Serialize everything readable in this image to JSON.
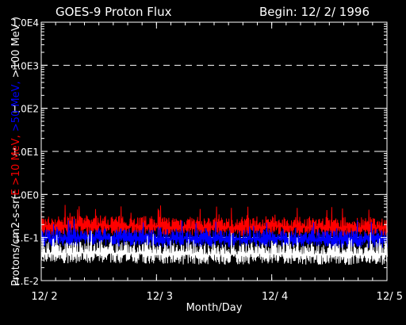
{
  "chart_data": {
    "type": "line",
    "title": "GOES-9 Proton Flux",
    "subtitle": "Begin: 12/ 2/ 1996",
    "xlabel": "Month/Day",
    "ylabel_parts": [
      {
        "text": "Protons/cm2-s-sr(",
        "color": "#ffffff"
      },
      {
        "text": "E >10 MeV, ",
        "color": "#ff0000"
      },
      {
        "text": ">50 MeV, ",
        "color": "#0000ff"
      },
      {
        "text": ">100 MeV )",
        "color": "#ffffff"
      }
    ],
    "y_scale": "log",
    "ylim": [
      0.01,
      10000
    ],
    "y_ticks": [
      {
        "value": 10000,
        "label": "1.0E4"
      },
      {
        "value": 1000,
        "label": "1.0E3"
      },
      {
        "value": 100,
        "label": "1.0E2"
      },
      {
        "value": 10,
        "label": "1.0E1"
      },
      {
        "value": 1,
        "label": "1.0E0"
      },
      {
        "value": 0.1,
        "label": "1.E-1"
      },
      {
        "value": 0.01,
        "label": "1.E-2"
      }
    ],
    "x_ticks": [
      {
        "value": "12/2",
        "label": "12/ 2"
      },
      {
        "value": "12/3",
        "label": "12/ 3"
      },
      {
        "value": "12/4",
        "label": "12/ 4"
      },
      {
        "value": "12/5",
        "label": "12/ 5"
      }
    ],
    "grid": "dashed horizontal at decades",
    "series": [
      {
        "color": "#ff0000",
        "x": [
          "12/2",
          "12/2 12:00",
          "12/3",
          "12/3 12:00",
          "12/4",
          "12/4 12:00",
          "12/5"
        ],
        "values": [
          0.18,
          0.19,
          0.18,
          0.17,
          0.18,
          0.17,
          0.17
        ]
      },
      {
        "color": "#0000ff",
        "x": [
          "12/2",
          "12/2 12:00",
          "12/3",
          "12/3 12:00",
          "12/4",
          "12/4 12:00",
          "12/5"
        ],
        "values": [
          0.095,
          0.1,
          0.095,
          0.09,
          0.095,
          0.09,
          0.09
        ]
      },
      {
        "color": "#ffffff",
        "x": [
          "12/2",
          "12/2 12:00",
          "12/3",
          "12/3 12:00",
          "12/4",
          "12/4 12:00",
          "12/5"
        ],
        "values": [
          0.042,
          0.045,
          0.042,
          0.04,
          0.042,
          0.04,
          0.04
        ]
      }
    ]
  }
}
